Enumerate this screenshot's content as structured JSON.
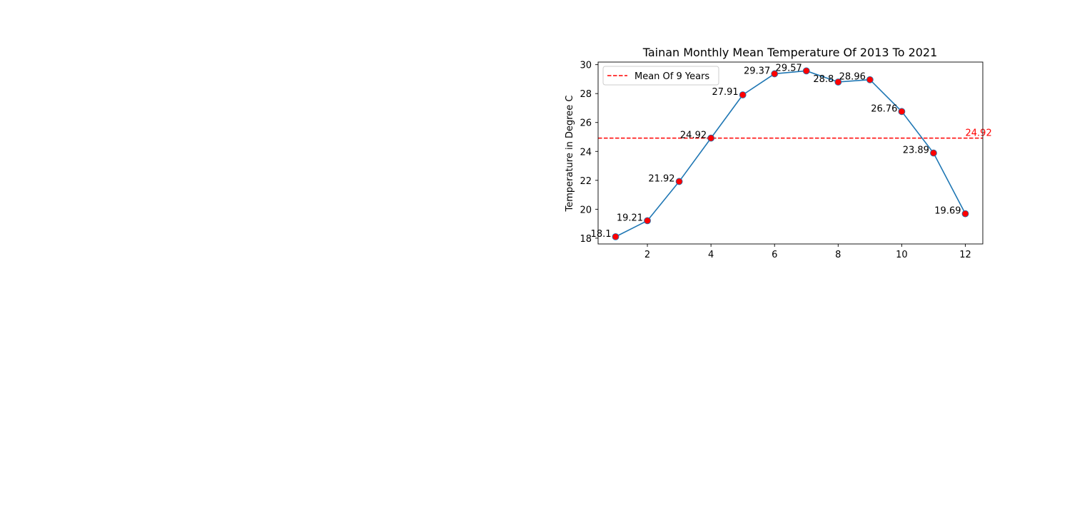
{
  "chart_data": {
    "type": "line",
    "title": "Tainan Monthly Mean Temperature Of 2013 To 2021",
    "xlabel": "",
    "ylabel": "Temperature in Degree C",
    "x": [
      1,
      2,
      3,
      4,
      5,
      6,
      7,
      8,
      9,
      10,
      11,
      12
    ],
    "series": [
      {
        "values": [
          18.1,
          19.21,
          21.92,
          24.92,
          27.91,
          29.37,
          29.57,
          28.8,
          28.96,
          26.76,
          23.89,
          19.69
        ],
        "line_color": "#1f77b4",
        "marker_color": "#ff0000",
        "data_labels": [
          "18.1",
          "19.21",
          "21.92",
          "24.92",
          "27.91",
          "29.37",
          "29.57",
          "28.8",
          "28.96",
          "26.76",
          "23.89",
          "19.69"
        ]
      }
    ],
    "mean_line": {
      "name": "Mean Of 9 Years",
      "value": 24.92,
      "label": "24.92",
      "color": "#ff0000",
      "style": "dashed"
    },
    "xlim": [
      0.45,
      12.55
    ],
    "ylim": [
      17.6,
      30.18
    ],
    "xticks": [
      2,
      4,
      6,
      8,
      10,
      12
    ],
    "xtick_labels": [
      "2",
      "4",
      "6",
      "8",
      "10",
      "12"
    ],
    "yticks": [
      18,
      20,
      22,
      24,
      26,
      28,
      30
    ],
    "ytick_labels": [
      "18",
      "20",
      "22",
      "24",
      "26",
      "28",
      "30"
    ],
    "grid": false,
    "legend_position": "upper left"
  }
}
